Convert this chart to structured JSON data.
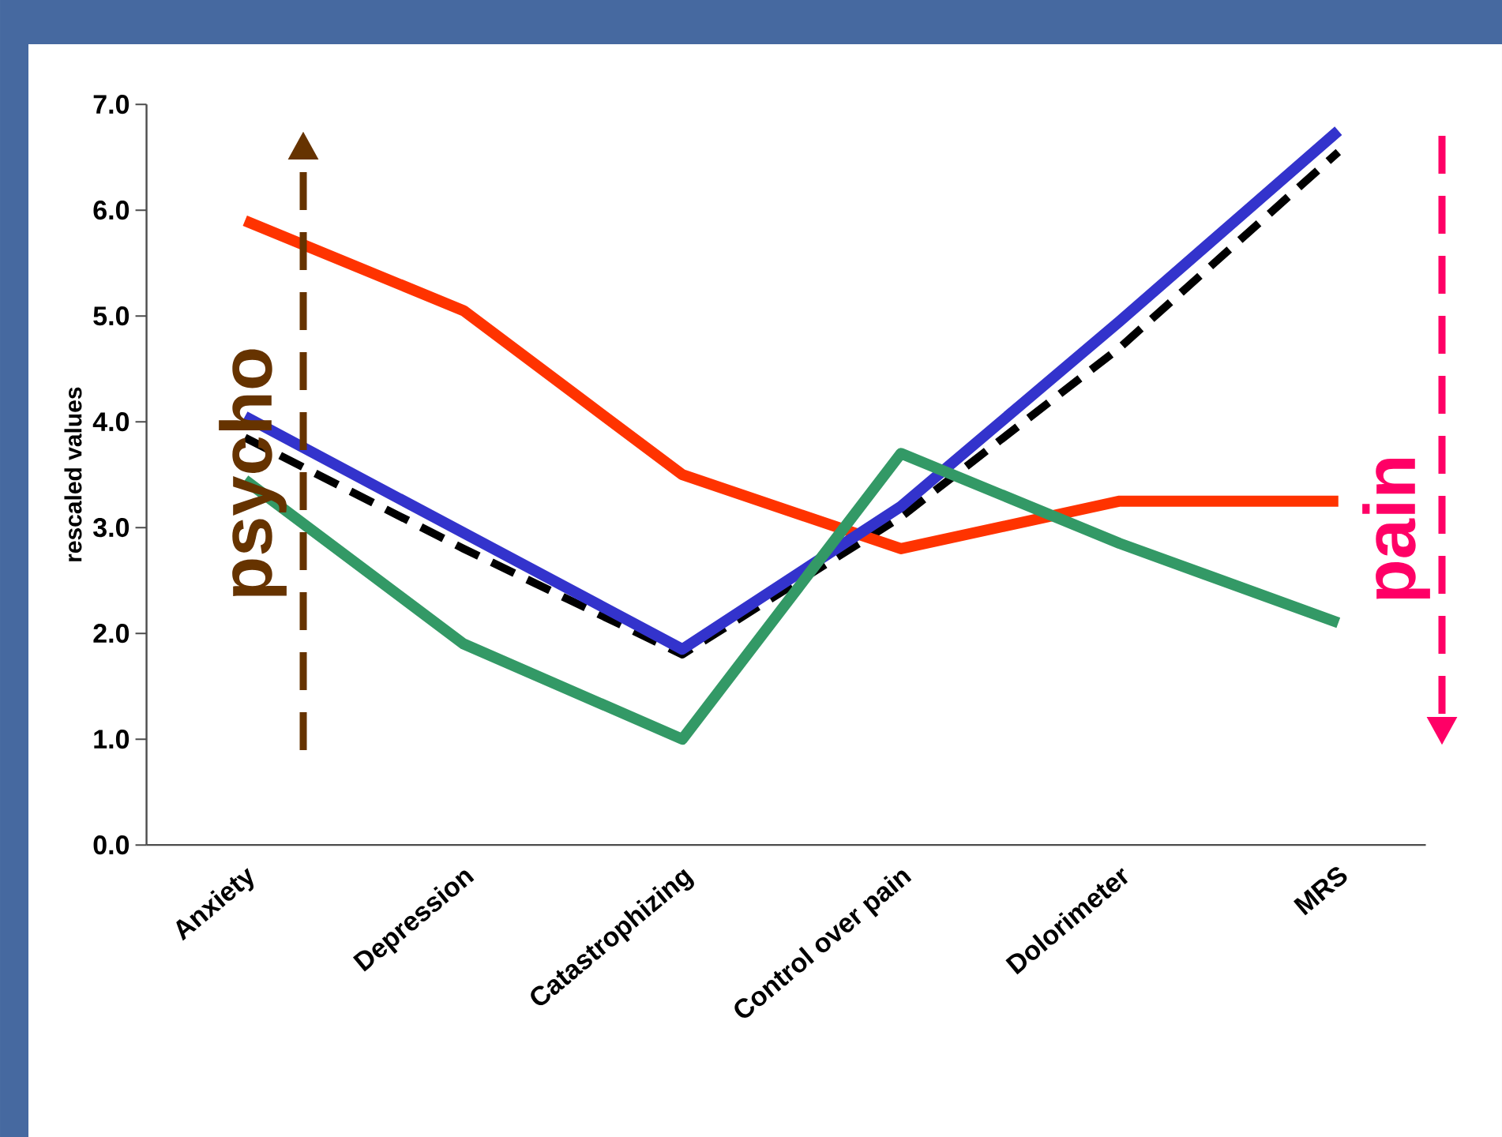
{
  "chart_data": {
    "type": "line",
    "ylabel": "rescaled values",
    "categories": [
      "Anxiety",
      "Depression",
      "Catastrophizing",
      "Control over pain",
      "Dolorimeter",
      "MRS"
    ],
    "ylim": [
      0,
      7
    ],
    "yticks": [
      {
        "value": 0,
        "label": "0.0"
      },
      {
        "value": 1,
        "label": "1.0"
      },
      {
        "value": 2,
        "label": "2.0"
      },
      {
        "value": 3,
        "label": "3.0"
      },
      {
        "value": 4,
        "label": "4.0"
      },
      {
        "value": 5,
        "label": "5.0"
      },
      {
        "value": 6,
        "label": "6.0"
      },
      {
        "value": 7,
        "label": "7.0"
      }
    ],
    "series": [
      {
        "color": "#000000",
        "line_style": "dashed",
        "values": [
          3.85,
          2.8,
          1.8,
          3.1,
          4.7,
          6.55
        ]
      },
      {
        "color": "#ff3300",
        "values": [
          5.9,
          5.05,
          3.5,
          2.8,
          3.25,
          3.25
        ]
      },
      {
        "color": "#3333cc",
        "values": [
          4.05,
          2.95,
          1.85,
          3.2,
          4.95,
          6.75
        ]
      },
      {
        "color": "#339966",
        "values": [
          3.45,
          1.9,
          1.0,
          3.7,
          2.85,
          2.1
        ]
      }
    ],
    "annotations": [
      "psycho",
      "pain"
    ]
  }
}
